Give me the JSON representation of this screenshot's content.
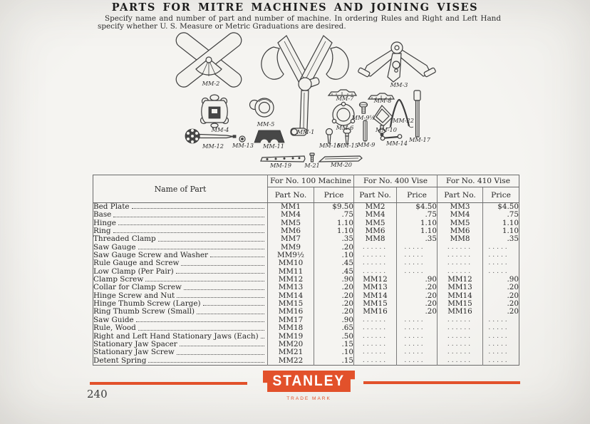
{
  "page": {
    "title": "PARTS FOR MITRE MACHINES AND JOINING VISES",
    "subtitle_line1": "Specify name and number of part and number of machine. In ordering Rules and Right and Left Hand Jaws",
    "subtitle_line2": "specify whether U. S. Measure or Metric Graduations are desired.",
    "page_number": "240"
  },
  "brand": {
    "logo_text": "STANLEY",
    "trade_mark_label": "TRADE MARK",
    "accent_color": "#e2512b"
  },
  "diagram": {
    "labels": [
      "MM-2",
      "MM-5",
      "MM-1",
      "MM-3",
      "MM-4",
      "MM-12",
      "MM-13",
      "MM-11",
      "MM-7",
      "MM-8",
      "MM-6",
      "MM-9½",
      "MM-10",
      "MM-22",
      "MM-16",
      "MM-15",
      "MM-9",
      "MM-14",
      "MM-17",
      "MM-19",
      "M-21",
      "MM-20"
    ]
  },
  "table": {
    "name_header": "Name of Part",
    "groups": [
      "For No. 100 Machine",
      "For No. 400 Vise",
      "For No. 410 Vise"
    ],
    "sub_part": "Part No.",
    "sub_price": "Price",
    "rows": [
      {
        "name": "Bed Plate",
        "cells": [
          "MM1",
          "$9.50",
          "MM2",
          "$4.50",
          "MM3",
          "$4.50"
        ]
      },
      {
        "name": "Base",
        "cells": [
          "MM4",
          ".75",
          "MM4",
          ".75",
          "MM4",
          ".75"
        ]
      },
      {
        "name": "Hinge",
        "cells": [
          "MM5",
          "1.10",
          "MM5",
          "1.10",
          "MM5",
          "1.10"
        ]
      },
      {
        "name": "Ring",
        "cells": [
          "MM6",
          "1.10",
          "MM6",
          "1.10",
          "MM6",
          "1.10"
        ]
      },
      {
        "name": "Threaded Clamp",
        "cells": [
          "MM7",
          ".35",
          "MM8",
          ".35",
          "MM8",
          ".35"
        ]
      },
      {
        "name": "Saw Gauge",
        "cells": [
          "MM9",
          ".20",
          "......",
          ".....",
          "......",
          "....."
        ]
      },
      {
        "name": "Saw Gauge Screw and Washer",
        "cells": [
          "MM9½",
          ".10",
          "......",
          ".....",
          "......",
          "....."
        ]
      },
      {
        "name": "Rule Gauge and Screw",
        "cells": [
          "MM10",
          ".45",
          "......",
          ".....",
          "......",
          "....."
        ]
      },
      {
        "name": "Low Clamp (Per Pair)",
        "cells": [
          "MM11",
          ".45",
          "......",
          ".....",
          "......",
          "....."
        ]
      },
      {
        "name": "Clamp Screw",
        "cells": [
          "MM12",
          ".90",
          "MM12",
          ".90",
          "MM12",
          ".90"
        ]
      },
      {
        "name": "Collar for Clamp Screw",
        "cells": [
          "MM13",
          ".20",
          "MM13",
          ".20",
          "MM13",
          ".20"
        ]
      },
      {
        "name": "Hinge Screw and Nut",
        "cells": [
          "MM14",
          ".20",
          "MM14",
          ".20",
          "MM14",
          ".20"
        ]
      },
      {
        "name": "Hinge Thumb Screw (Large)",
        "cells": [
          "MM15",
          ".20",
          "MM15",
          ".20",
          "MM15",
          ".20"
        ]
      },
      {
        "name": "Ring Thumb Screw (Small)",
        "cells": [
          "MM16",
          ".20",
          "MM16",
          ".20",
          "MM16",
          ".20"
        ]
      },
      {
        "name": "Saw Guide",
        "cells": [
          "MM17",
          ".90",
          "......",
          ".....",
          "......",
          "....."
        ]
      },
      {
        "name": "Rule, Wood",
        "cells": [
          "MM18",
          ".65",
          "......",
          ".....",
          "......",
          "....."
        ]
      },
      {
        "name": "Right and Left Hand Stationary Jaws (Each)",
        "cells": [
          "MM19",
          ".50",
          "......",
          ".....",
          "......",
          "....."
        ]
      },
      {
        "name": "Stationary Jaw Spacer",
        "cells": [
          "MM20",
          ".15",
          "......",
          ".....",
          "......",
          "....."
        ]
      },
      {
        "name": "Stationary Jaw Screw",
        "cells": [
          "MM21",
          ".10",
          "......",
          ".....",
          "......",
          "....."
        ]
      },
      {
        "name": "Detent Spring",
        "cells": [
          "MM22",
          ".15",
          "......",
          ".....",
          "......",
          "....."
        ]
      }
    ]
  }
}
